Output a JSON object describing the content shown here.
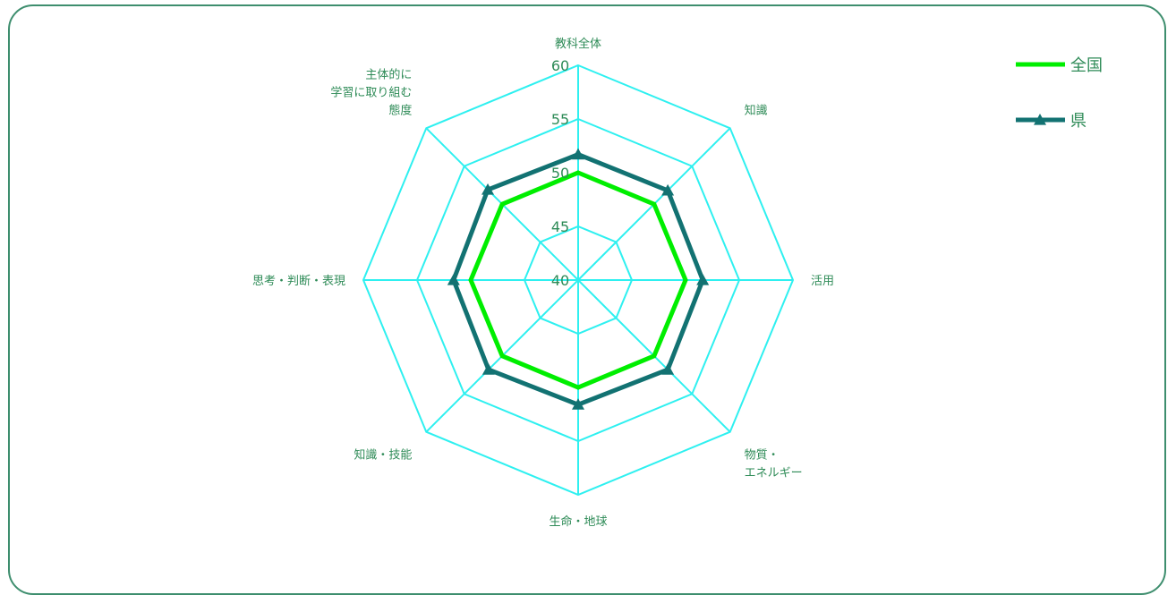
{
  "chart_data": {
    "type": "radar",
    "axes": [
      [
        "教科全体"
      ],
      [
        "知識"
      ],
      [
        "活用"
      ],
      [
        "物質・",
        "エネルギー"
      ],
      [
        "生命・地球"
      ],
      [
        "知識・技能"
      ],
      [
        "思考・判断・表現"
      ],
      [
        "主体的に",
        "学習に取り組む",
        "態度"
      ]
    ],
    "rlim": [
      40,
      60
    ],
    "ticks": [
      "40",
      "45",
      "50",
      "55",
      "60"
    ],
    "series": [
      {
        "name": "全国",
        "values": [
          50,
          50,
          50,
          50,
          50,
          50,
          50,
          50
        ],
        "color": "#00ee00",
        "marker": "none"
      },
      {
        "name": "県",
        "values": [
          51.7,
          51.8,
          51.6,
          51.8,
          51.6,
          51.8,
          51.6,
          51.9
        ],
        "color": "#127272",
        "marker": "triangle"
      }
    ],
    "grid_color": "#2ef0f0",
    "legend_position": "top-right"
  }
}
